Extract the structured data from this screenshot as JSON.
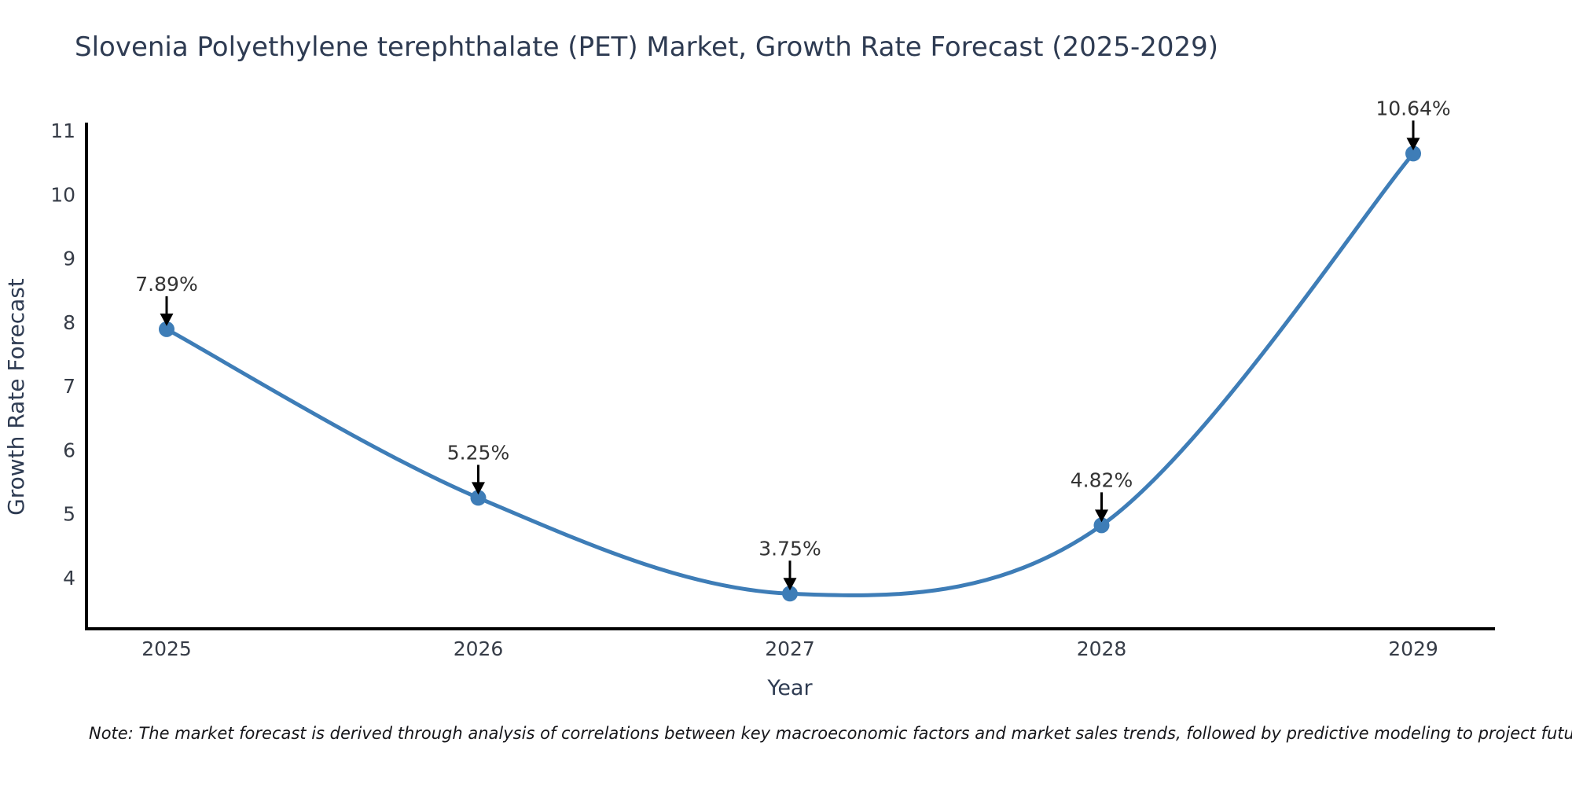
{
  "chart_data": {
    "type": "line",
    "title": "Slovenia Polyethylene terephthalate (PET) Market, Growth Rate Forecast (2025-2029)",
    "xlabel": "Year",
    "ylabel": "Growth Rate Forecast",
    "categories": [
      "2025",
      "2026",
      "2027",
      "2028",
      "2029"
    ],
    "series": [
      {
        "name": "Growth Rate Forecast (%)",
        "values": [
          7.89,
          5.25,
          3.75,
          4.82,
          10.64
        ]
      }
    ],
    "point_labels": [
      "7.89%",
      "5.25%",
      "3.75%",
      "4.82%",
      "10.64%"
    ],
    "yticks": [
      4,
      5,
      6,
      7,
      8,
      9,
      10,
      11
    ],
    "ylim": [
      3.2,
      11.1
    ],
    "grid": false,
    "legend": "none",
    "smooth": true,
    "annotations_have_arrows": true
  },
  "note": {
    "text": "Note: The market forecast is derived through analysis of correlations between key macroeconomic factors and market sales trends, followed by predictive modeling to project future sales"
  },
  "colors": {
    "line": "#3e7db7",
    "marker": "#3e7db7",
    "axis": "#000000",
    "title_text": "#2e3b52",
    "axis_label_text": "#2e3b52",
    "tick_text": "#363c47",
    "annotation_text": "#333333",
    "annotation_arrow": "#000000",
    "background": "#ffffff"
  }
}
